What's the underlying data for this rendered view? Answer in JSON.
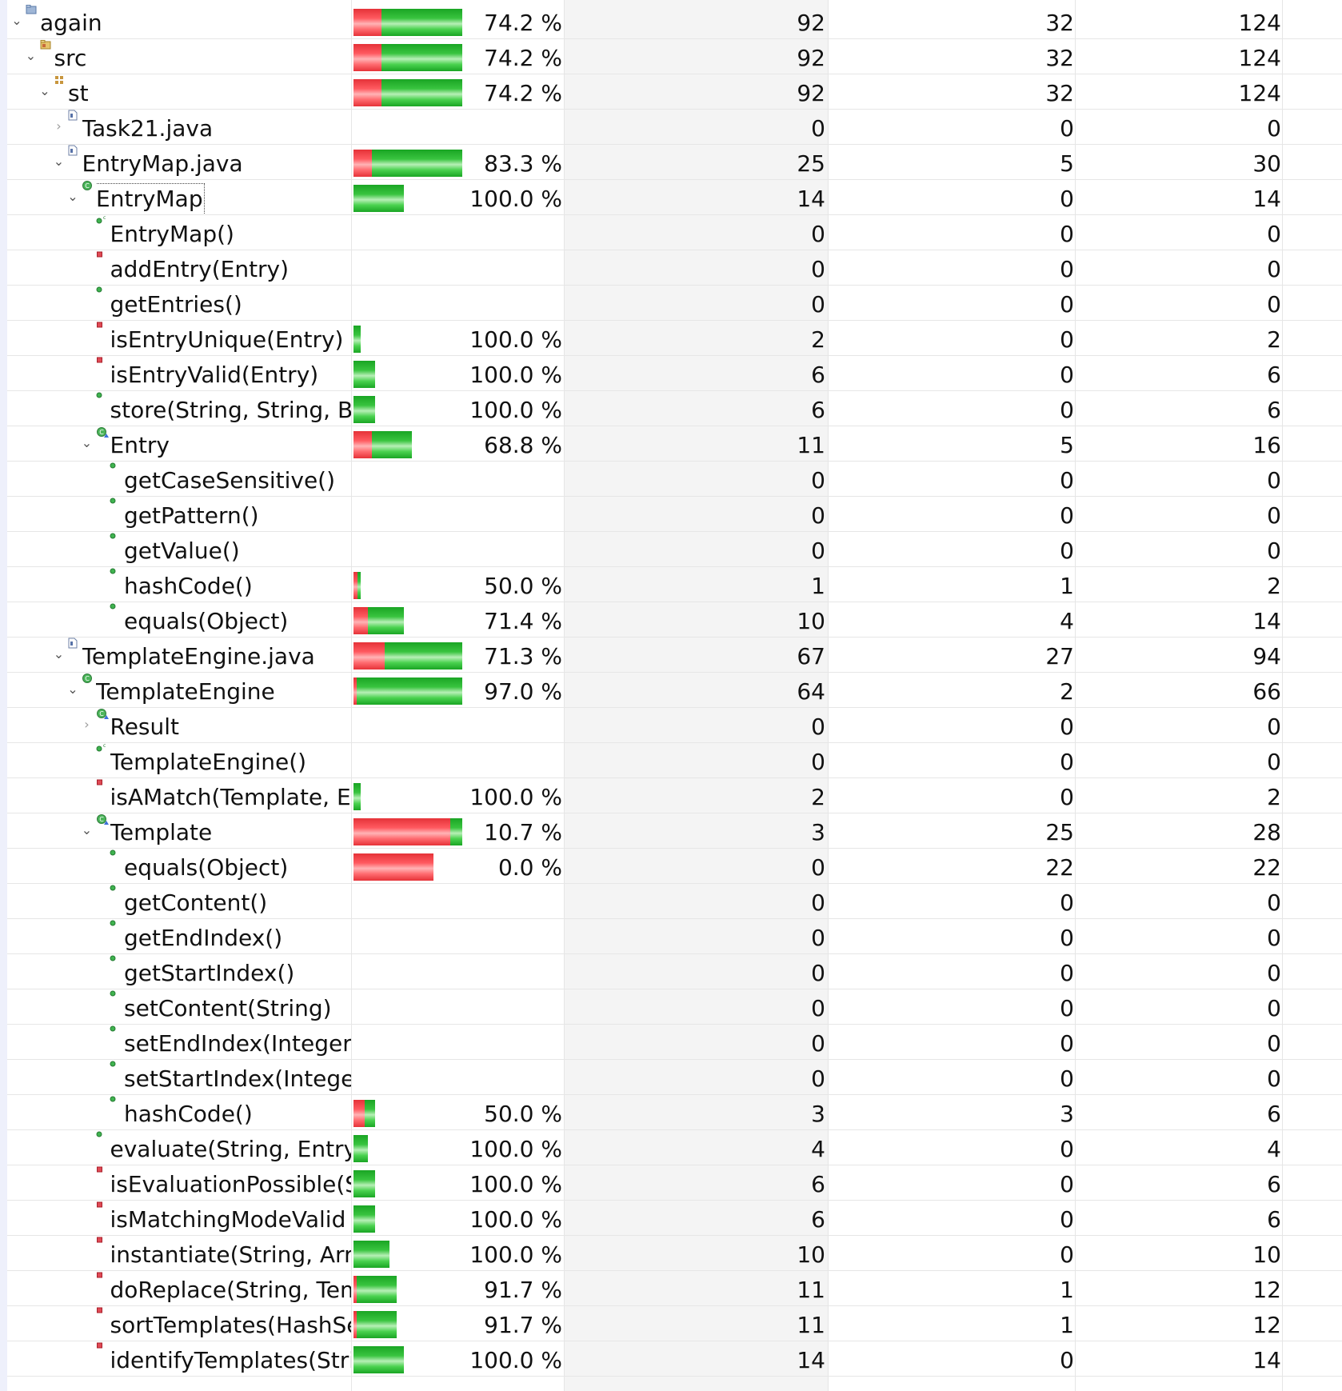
{
  "coverage_tree": {
    "rows": [
      {
        "name": "again",
        "depth": 0,
        "expanded": true,
        "icon": "project-icon",
        "coverage": 0.742,
        "percent": "74.2 %",
        "covered": "92",
        "missed": "32",
        "total": "124"
      },
      {
        "name": "src",
        "depth": 1,
        "expanded": true,
        "icon": "source-folder-icon",
        "coverage": 0.742,
        "percent": "74.2 %",
        "covered": "92",
        "missed": "32",
        "total": "124"
      },
      {
        "name": "st",
        "depth": 2,
        "expanded": true,
        "icon": "package-icon",
        "coverage": 0.742,
        "percent": "74.2 %",
        "covered": "92",
        "missed": "32",
        "total": "124"
      },
      {
        "name": "Task21.java",
        "depth": 3,
        "expanded": false,
        "icon": "java-file-icon",
        "coverage": null,
        "percent": "",
        "covered": "0",
        "missed": "0",
        "total": "0"
      },
      {
        "name": "EntryMap.java",
        "depth": 3,
        "expanded": true,
        "icon": "java-file-icon",
        "coverage": 0.833,
        "percent": "83.3 %",
        "covered": "25",
        "missed": "5",
        "total": "30"
      },
      {
        "name": "EntryMap",
        "depth": 4,
        "expanded": true,
        "icon": "class-icon",
        "coverage": 1.0,
        "percent": "100.0 %",
        "covered": "14",
        "missed": "0",
        "total": "14",
        "selected": true
      },
      {
        "name": "EntryMap()",
        "depth": 5,
        "icon": "constructor-icon",
        "coverage": null,
        "percent": "",
        "covered": "0",
        "missed": "0",
        "total": "0"
      },
      {
        "name": "addEntry(Entry)",
        "depth": 5,
        "icon": "private-method-icon",
        "coverage": null,
        "percent": "",
        "covered": "0",
        "missed": "0",
        "total": "0"
      },
      {
        "name": "getEntries()",
        "depth": 5,
        "icon": "public-method-icon",
        "coverage": null,
        "percent": "",
        "covered": "0",
        "missed": "0",
        "total": "0"
      },
      {
        "name": "isEntryUnique(Entry)",
        "depth": 5,
        "icon": "private-method-icon",
        "coverage": 1.0,
        "percent": "100.0 %",
        "covered": "2",
        "missed": "0",
        "total": "2"
      },
      {
        "name": "isEntryValid(Entry)",
        "depth": 5,
        "icon": "private-method-icon",
        "coverage": 1.0,
        "percent": "100.0 %",
        "covered": "6",
        "missed": "0",
        "total": "6"
      },
      {
        "name": "store(String, String, Bc",
        "depth": 5,
        "icon": "public-method-icon",
        "coverage": 1.0,
        "percent": "100.0 %",
        "covered": "6",
        "missed": "0",
        "total": "6"
      },
      {
        "name": "Entry",
        "depth": 5,
        "expanded": true,
        "icon": "inner-class-icon",
        "coverage": 0.688,
        "percent": "68.8 %",
        "covered": "11",
        "missed": "5",
        "total": "16"
      },
      {
        "name": "getCaseSensitive()",
        "depth": 6,
        "icon": "public-method-icon",
        "coverage": null,
        "percent": "",
        "covered": "0",
        "missed": "0",
        "total": "0"
      },
      {
        "name": "getPattern()",
        "depth": 6,
        "icon": "public-method-icon",
        "coverage": null,
        "percent": "",
        "covered": "0",
        "missed": "0",
        "total": "0"
      },
      {
        "name": "getValue()",
        "depth": 6,
        "icon": "public-method-icon",
        "coverage": null,
        "percent": "",
        "covered": "0",
        "missed": "0",
        "total": "0"
      },
      {
        "name": "hashCode()",
        "depth": 6,
        "icon": "public-method-icon",
        "coverage": 0.5,
        "percent": "50.0 %",
        "covered": "1",
        "missed": "1",
        "total": "2"
      },
      {
        "name": "equals(Object)",
        "depth": 6,
        "icon": "public-method-icon",
        "coverage": 0.714,
        "percent": "71.4 %",
        "covered": "10",
        "missed": "4",
        "total": "14"
      },
      {
        "name": "TemplateEngine.java",
        "depth": 3,
        "expanded": true,
        "icon": "java-file-icon",
        "coverage": 0.713,
        "percent": "71.3 %",
        "covered": "67",
        "missed": "27",
        "total": "94"
      },
      {
        "name": "TemplateEngine",
        "depth": 4,
        "expanded": true,
        "icon": "class-icon",
        "coverage": 0.97,
        "percent": "97.0 %",
        "covered": "64",
        "missed": "2",
        "total": "66"
      },
      {
        "name": "Result",
        "depth": 5,
        "expanded": false,
        "icon": "inner-class-icon",
        "coverage": null,
        "percent": "",
        "covered": "0",
        "missed": "0",
        "total": "0"
      },
      {
        "name": "TemplateEngine()",
        "depth": 5,
        "icon": "constructor-icon",
        "coverage": null,
        "percent": "",
        "covered": "0",
        "missed": "0",
        "total": "0"
      },
      {
        "name": "isAMatch(Template, Er",
        "depth": 5,
        "icon": "private-method-icon",
        "coverage": 1.0,
        "percent": "100.0 %",
        "covered": "2",
        "missed": "0",
        "total": "2"
      },
      {
        "name": "Template",
        "depth": 5,
        "expanded": true,
        "icon": "inner-class-icon",
        "coverage": 0.107,
        "percent": "10.7 %",
        "covered": "3",
        "missed": "25",
        "total": "28"
      },
      {
        "name": "equals(Object)",
        "depth": 6,
        "icon": "public-method-icon",
        "coverage": 0.0,
        "percent": "0.0 %",
        "covered": "0",
        "missed": "22",
        "total": "22"
      },
      {
        "name": "getContent()",
        "depth": 6,
        "icon": "public-method-icon",
        "coverage": null,
        "percent": "",
        "covered": "0",
        "missed": "0",
        "total": "0"
      },
      {
        "name": "getEndIndex()",
        "depth": 6,
        "icon": "public-method-icon",
        "coverage": null,
        "percent": "",
        "covered": "0",
        "missed": "0",
        "total": "0"
      },
      {
        "name": "getStartIndex()",
        "depth": 6,
        "icon": "public-method-icon",
        "coverage": null,
        "percent": "",
        "covered": "0",
        "missed": "0",
        "total": "0"
      },
      {
        "name": "setContent(String)",
        "depth": 6,
        "icon": "public-method-icon",
        "coverage": null,
        "percent": "",
        "covered": "0",
        "missed": "0",
        "total": "0"
      },
      {
        "name": "setEndIndex(Integer)",
        "depth": 6,
        "icon": "public-method-icon",
        "coverage": null,
        "percent": "",
        "covered": "0",
        "missed": "0",
        "total": "0"
      },
      {
        "name": "setStartIndex(Intege",
        "depth": 6,
        "icon": "public-method-icon",
        "coverage": null,
        "percent": "",
        "covered": "0",
        "missed": "0",
        "total": "0"
      },
      {
        "name": "hashCode()",
        "depth": 6,
        "icon": "public-method-icon",
        "coverage": 0.5,
        "percent": "50.0 %",
        "covered": "3",
        "missed": "3",
        "total": "6"
      },
      {
        "name": "evaluate(String, EntryN",
        "depth": 5,
        "icon": "public-method-icon",
        "coverage": 1.0,
        "percent": "100.0 %",
        "covered": "4",
        "missed": "0",
        "total": "4"
      },
      {
        "name": "isEvaluationPossible(S",
        "depth": 5,
        "icon": "private-method-icon",
        "coverage": 1.0,
        "percent": "100.0 %",
        "covered": "6",
        "missed": "0",
        "total": "6"
      },
      {
        "name": "isMatchingModeValid",
        "depth": 5,
        "icon": "private-method-icon",
        "coverage": 1.0,
        "percent": "100.0 %",
        "covered": "6",
        "missed": "0",
        "total": "6"
      },
      {
        "name": "instantiate(String, Arra",
        "depth": 5,
        "icon": "private-method-icon",
        "coverage": 1.0,
        "percent": "100.0 %",
        "covered": "10",
        "missed": "0",
        "total": "10"
      },
      {
        "name": "doReplace(String, Tem",
        "depth": 5,
        "icon": "private-method-icon",
        "coverage": 0.917,
        "percent": "91.7 %",
        "covered": "11",
        "missed": "1",
        "total": "12"
      },
      {
        "name": "sortTemplates(HashSe",
        "depth": 5,
        "icon": "private-method-icon",
        "coverage": 0.917,
        "percent": "91.7 %",
        "covered": "11",
        "missed": "1",
        "total": "12"
      },
      {
        "name": "identifyTemplates(Stri",
        "depth": 5,
        "icon": "private-method-icon",
        "coverage": 1.0,
        "percent": "100.0 %",
        "covered": "14",
        "missed": "0",
        "total": "14"
      }
    ]
  },
  "colors": {
    "missed_bar": "#ff4d53",
    "covered_bar": "#2fbf36",
    "column_shade": "#f4f4f4",
    "grid_line": "#e6e6e6"
  }
}
